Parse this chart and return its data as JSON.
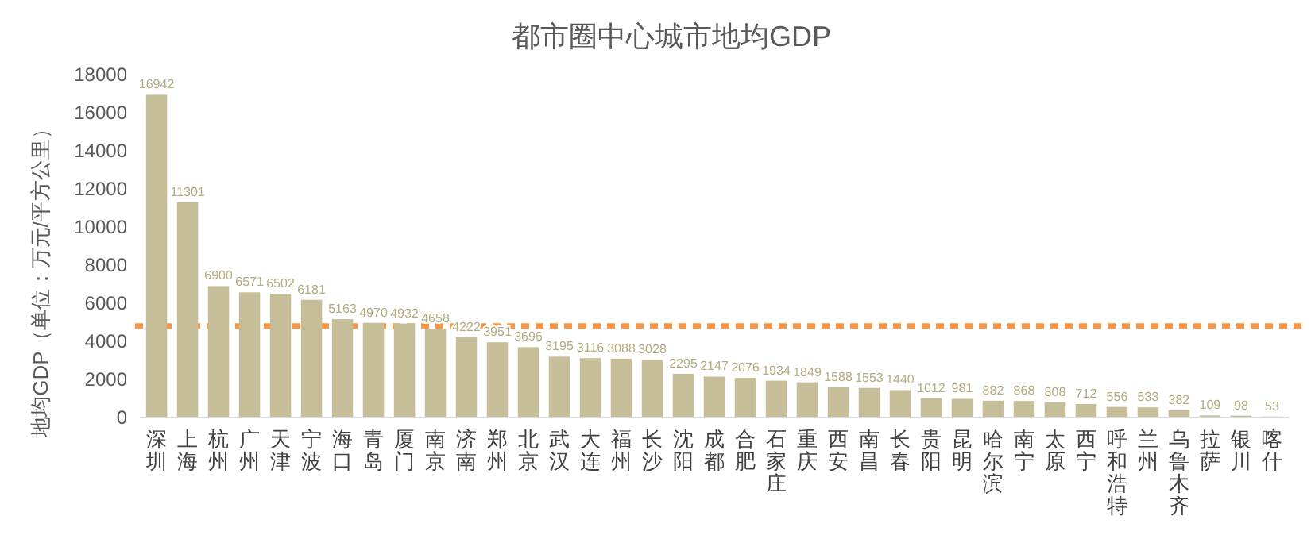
{
  "chart_data": {
    "type": "bar",
    "title": "都市圈中心城市地均GDP",
    "ylabel": "地均GDP（单位：万元/平方公里）",
    "categories": [
      "深圳",
      "上海",
      "杭州",
      "广州",
      "天津",
      "宁波",
      "海口",
      "青岛",
      "厦门",
      "南京",
      "济南",
      "郑州",
      "北京",
      "武汉",
      "大连",
      "福州",
      "长沙",
      "沈阳",
      "成都",
      "合肥",
      "石家庄",
      "重庆",
      "西安",
      "南昌",
      "长春",
      "贵阳",
      "昆明",
      "哈尔滨",
      "南宁",
      "太原",
      "西宁",
      "呼和浩特",
      "兰州",
      "乌鲁木齐",
      "拉萨",
      "银川",
      "喀什"
    ],
    "values": [
      16942,
      11301,
      6900,
      6571,
      6502,
      6181,
      5163,
      4970,
      4932,
      4658,
      4222,
      3951,
      3696,
      3195,
      3116,
      3088,
      3028,
      2295,
      2147,
      2076,
      1934,
      1849,
      1588,
      1553,
      1440,
      1012,
      981,
      882,
      868,
      808,
      712,
      556,
      533,
      382,
      109,
      98,
      53
    ],
    "color": "#c6be99",
    "data_labels": true,
    "ylim": [
      0,
      18000
    ],
    "yticks": [
      0,
      2000,
      4000,
      6000,
      8000,
      10000,
      12000,
      14000,
      16000,
      18000
    ],
    "grid": false,
    "ref_lines": [
      {
        "axis": "y",
        "value": 4800,
        "color": "#f79646",
        "line_style": "dotted"
      }
    ]
  }
}
